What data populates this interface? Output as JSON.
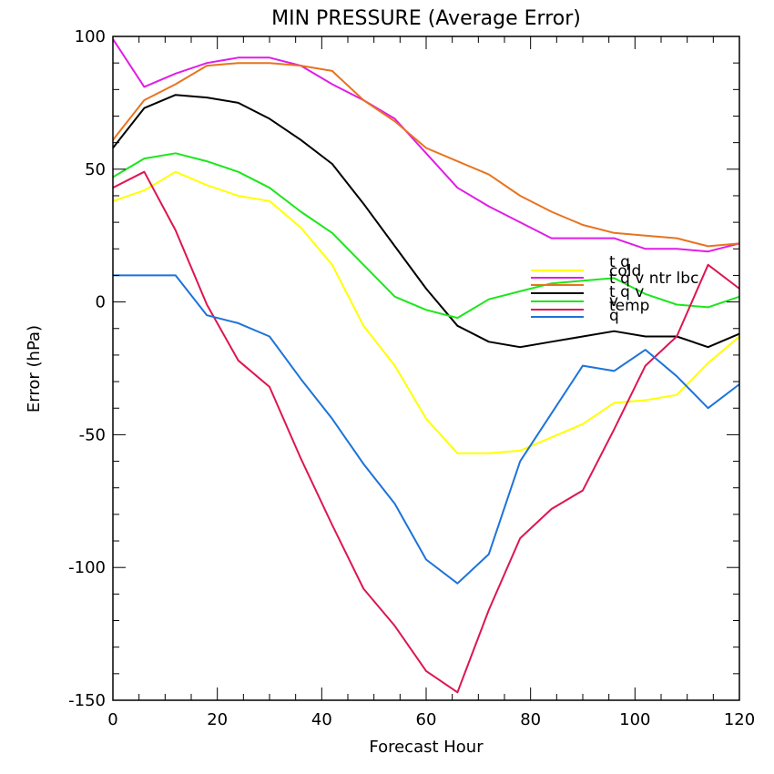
{
  "chart_data": {
    "type": "line",
    "title": "MIN PRESSURE (Average Error)",
    "xlabel": "Forecast Hour",
    "ylabel": "Error (hPa)",
    "xlim": [
      0,
      120
    ],
    "ylim": [
      -150,
      100
    ],
    "xticks": [
      0,
      20,
      40,
      60,
      80,
      100,
      120
    ],
    "yticks": [
      -150,
      -100,
      -50,
      0,
      50,
      100
    ],
    "x": [
      0,
      6,
      12,
      18,
      24,
      30,
      36,
      42,
      48,
      54,
      60,
      66,
      72,
      78,
      84,
      90,
      96,
      102,
      108,
      114,
      120
    ],
    "series": [
      {
        "name": "t q",
        "color": "#ffff00",
        "values": [
          38,
          42,
          49,
          44,
          40,
          38,
          28,
          14,
          -9,
          -24,
          -44,
          -57,
          -57,
          -56,
          -51,
          -46,
          -38,
          -37,
          -35,
          -23,
          -13
        ]
      },
      {
        "name": "cold",
        "color": "#e01de6",
        "values": [
          99,
          81,
          86,
          90,
          92,
          92,
          89,
          82,
          76,
          69,
          56,
          43,
          36,
          30,
          24,
          24,
          24,
          20,
          20,
          19,
          22
        ]
      },
      {
        "name": "t q v ntr lbc",
        "color": "#e87320",
        "values": [
          61,
          76,
          82,
          89,
          90,
          90,
          89,
          87,
          76,
          68,
          58,
          53,
          48,
          40,
          34,
          29,
          26,
          25,
          24,
          21,
          22
        ]
      },
      {
        "name": "t q v",
        "color": "#000000",
        "values": [
          58,
          73,
          78,
          77,
          75,
          69,
          61,
          52,
          37,
          21,
          5,
          -9,
          -15,
          -17,
          -15,
          -13,
          -11,
          -13,
          -13,
          -17,
          -12
        ]
      },
      {
        "name": "v",
        "color": "#1ce61c",
        "values": [
          47,
          54,
          56,
          53,
          49,
          43,
          34,
          26,
          14,
          2,
          -3,
          -6,
          1,
          4,
          7,
          8,
          9,
          3,
          -1,
          -2,
          2
        ]
      },
      {
        "name": "temp",
        "color": "#dc1650",
        "values": [
          43,
          49,
          27,
          -1,
          -22,
          -32,
          -59,
          -84,
          -108,
          -122,
          -139,
          -147,
          -116,
          -89,
          -78,
          -71,
          -48,
          -24,
          -13,
          14,
          5
        ]
      },
      {
        "name": "q",
        "color": "#1c73d9",
        "values": [
          10,
          10,
          10,
          -5,
          -8,
          -13,
          -29,
          -44,
          -61,
          -76,
          -97,
          -106,
          -95,
          -60,
          -42,
          -24,
          -26,
          -18,
          -28,
          -40,
          -31
        ]
      }
    ],
    "legend_placement": "right"
  }
}
